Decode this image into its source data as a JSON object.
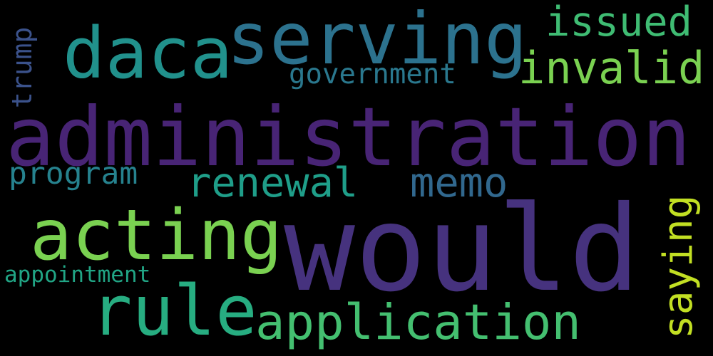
{
  "words": [
    {
      "text": "would",
      "color": "#46327e",
      "orientation": "horizontal"
    },
    {
      "text": "administration",
      "color": "#482475",
      "orientation": "horizontal"
    },
    {
      "text": "serving",
      "color": "#2c728e",
      "orientation": "horizontal"
    },
    {
      "text": "daca",
      "color": "#21918c",
      "orientation": "horizontal"
    },
    {
      "text": "acting",
      "color": "#7ad151",
      "orientation": "horizontal"
    },
    {
      "text": "rule",
      "color": "#27ad81",
      "orientation": "horizontal"
    },
    {
      "text": "application",
      "color": "#44bf70",
      "orientation": "horizontal"
    },
    {
      "text": "invalid",
      "color": "#7ad151",
      "orientation": "horizontal"
    },
    {
      "text": "issued",
      "color": "#3fbc73",
      "orientation": "horizontal"
    },
    {
      "text": "renewal",
      "color": "#1f9e89",
      "orientation": "horizontal"
    },
    {
      "text": "memo",
      "color": "#31688e",
      "orientation": "horizontal"
    },
    {
      "text": "saying",
      "color": "#c2df23",
      "orientation": "vertical"
    },
    {
      "text": "program",
      "color": "#26828e",
      "orientation": "horizontal"
    },
    {
      "text": "government",
      "color": "#2a788e",
      "orientation": "horizontal"
    },
    {
      "text": "trump",
      "color": "#3b528b",
      "orientation": "vertical"
    },
    {
      "text": "appointment",
      "color": "#21a585",
      "orientation": "horizontal"
    }
  ]
}
